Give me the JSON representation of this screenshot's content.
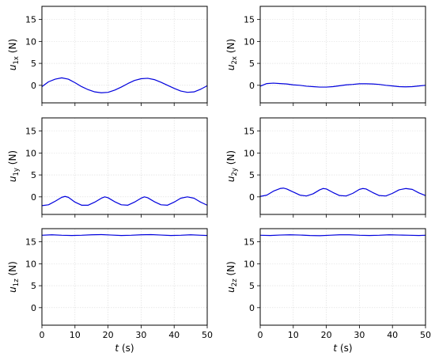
{
  "chart_data": {
    "type": "line",
    "series_color": "#0000dd",
    "xlim": [
      0,
      50
    ],
    "ylim": [
      -4,
      18
    ],
    "xticks": [
      0,
      10,
      20,
      30,
      40,
      50
    ],
    "yticks": [
      0,
      5,
      10,
      15
    ],
    "xlabel_var": "t",
    "xlabel_unit": " (s)",
    "grid": true,
    "panels": [
      {
        "id": "u1x",
        "ylabel_var": "u",
        "ylabel_sub": "1x",
        "ylabel_unit": " (N)",
        "x": [
          0,
          2,
          4,
          6,
          8,
          10,
          12,
          14,
          16,
          18,
          20,
          22,
          24,
          26,
          28,
          30,
          32,
          34,
          36,
          38,
          40,
          42,
          44,
          46,
          48,
          50
        ],
        "y": [
          -0.3,
          0.8,
          1.4,
          1.7,
          1.4,
          0.6,
          -0.3,
          -1.0,
          -1.5,
          -1.7,
          -1.6,
          -1.1,
          -0.4,
          0.4,
          1.1,
          1.5,
          1.6,
          1.3,
          0.7,
          0.0,
          -0.7,
          -1.3,
          -1.6,
          -1.5,
          -0.9,
          -0.1
        ]
      },
      {
        "id": "u2x",
        "ylabel_var": "u",
        "ylabel_sub": "2x",
        "ylabel_unit": " (N)",
        "x": [
          0,
          2,
          4,
          6,
          8,
          10,
          12,
          14,
          16,
          18,
          20,
          22,
          24,
          26,
          28,
          30,
          32,
          34,
          36,
          38,
          40,
          42,
          44,
          46,
          48,
          50
        ],
        "y": [
          -0.2,
          0.4,
          0.5,
          0.4,
          0.3,
          0.1,
          0.0,
          -0.2,
          -0.3,
          -0.4,
          -0.4,
          -0.3,
          -0.1,
          0.1,
          0.2,
          0.35,
          0.35,
          0.3,
          0.2,
          0.0,
          -0.15,
          -0.3,
          -0.35,
          -0.3,
          -0.15,
          0.0
        ]
      },
      {
        "id": "u1y",
        "ylabel_var": "u",
        "ylabel_sub": "1y",
        "ylabel_unit": " (N)",
        "x": [
          0,
          2,
          4,
          6,
          7,
          8,
          10,
          12,
          14,
          16,
          18,
          19,
          20,
          22,
          24,
          26,
          28,
          30,
          31,
          32,
          34,
          36,
          38,
          40,
          42,
          44,
          46,
          48,
          50
        ],
        "y": [
          -2.0,
          -1.8,
          -1.0,
          -0.1,
          0.1,
          -0.1,
          -1.2,
          -1.9,
          -1.9,
          -1.2,
          -0.3,
          0.0,
          -0.2,
          -1.1,
          -1.8,
          -1.9,
          -1.2,
          -0.3,
          0.0,
          -0.2,
          -1.1,
          -1.8,
          -1.9,
          -1.2,
          -0.3,
          0.0,
          -0.3,
          -1.2,
          -1.9
        ]
      },
      {
        "id": "u2y",
        "ylabel_var": "u",
        "ylabel_sub": "2y",
        "ylabel_unit": " (N)",
        "x": [
          0,
          2,
          4,
          6,
          7,
          8,
          10,
          12,
          14,
          16,
          18,
          19,
          20,
          22,
          24,
          26,
          28,
          30,
          31,
          32,
          34,
          36,
          38,
          40,
          42,
          44,
          46,
          48,
          50
        ],
        "y": [
          0.1,
          0.4,
          1.3,
          1.9,
          2.0,
          1.8,
          1.1,
          0.4,
          0.2,
          0.7,
          1.6,
          1.9,
          1.8,
          1.0,
          0.3,
          0.2,
          0.8,
          1.7,
          1.9,
          1.8,
          1.0,
          0.3,
          0.2,
          0.8,
          1.6,
          1.9,
          1.7,
          0.9,
          0.3
        ]
      },
      {
        "id": "u1z",
        "ylabel_var": "u",
        "ylabel_sub": "1z",
        "ylabel_unit": " (N)",
        "x": [
          0,
          3,
          6,
          9,
          12,
          15,
          18,
          21,
          24,
          27,
          30,
          33,
          36,
          39,
          42,
          45,
          48,
          50
        ],
        "y": [
          16.5,
          16.6,
          16.5,
          16.45,
          16.5,
          16.6,
          16.65,
          16.55,
          16.45,
          16.5,
          16.6,
          16.65,
          16.55,
          16.45,
          16.5,
          16.6,
          16.5,
          16.45
        ]
      },
      {
        "id": "u2z",
        "ylabel_var": "u",
        "ylabel_sub": "2z",
        "ylabel_unit": " (N)",
        "x": [
          0,
          3,
          6,
          9,
          12,
          15,
          18,
          21,
          24,
          27,
          30,
          33,
          36,
          39,
          42,
          45,
          48,
          50
        ],
        "y": [
          16.5,
          16.45,
          16.55,
          16.6,
          16.55,
          16.45,
          16.4,
          16.5,
          16.6,
          16.6,
          16.5,
          16.45,
          16.5,
          16.6,
          16.55,
          16.5,
          16.45,
          16.5
        ]
      }
    ]
  }
}
